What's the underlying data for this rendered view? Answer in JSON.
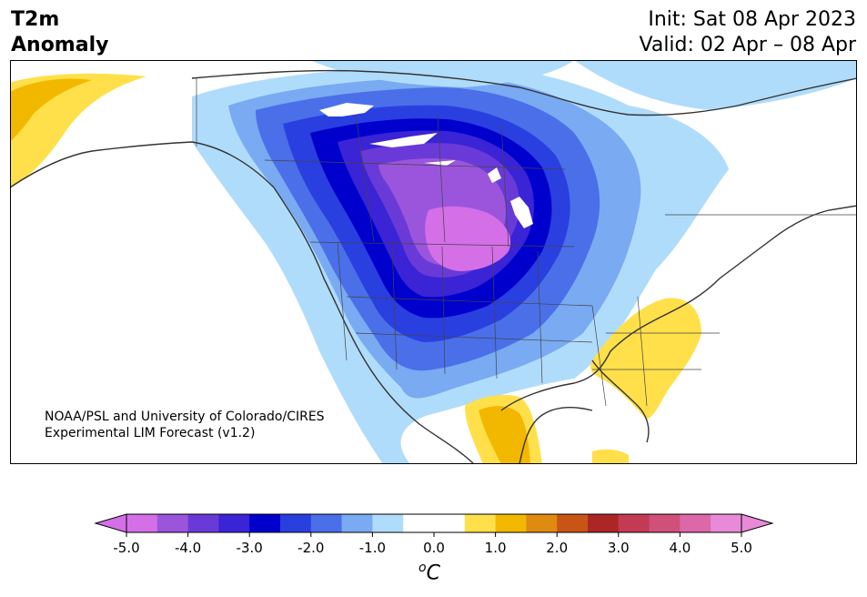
{
  "title": {
    "left_line1": "T2m",
    "left_line2": "Anomaly",
    "init": "Init: Sat 08 Apr 2023",
    "valid": "Valid: 02 Apr – 08 Apr"
  },
  "credit": {
    "line1": "NOAA/PSL and University of Colorado/CIRES",
    "line2": "Experimental LIM Forecast (v1.2)"
  },
  "colorbar": {
    "unit_sup": "o",
    "unit": "C",
    "ticks": [
      "-5.0",
      "-4.0",
      "-3.0",
      "-2.0",
      "-1.0",
      "0.0",
      "1.0",
      "2.0",
      "3.0",
      "4.0",
      "5.0"
    ],
    "colors": [
      "#d46fe8",
      "#9b55dc",
      "#6a3ad8",
      "#3b23d6",
      "#0000cd",
      "#2a3fe0",
      "#4a6fe8",
      "#79aaf2",
      "#b0dcfb",
      "#ffffff",
      "#ffffff",
      "#ffe04a",
      "#f2b800",
      "#df8a10",
      "#c85516",
      "#ac2626",
      "#c33a54",
      "#d1507a",
      "#dc68a8",
      "#e88ad8"
    ],
    "low_extend_color": "#d46fe8",
    "high_extend_color": "#e88ad8"
  }
}
